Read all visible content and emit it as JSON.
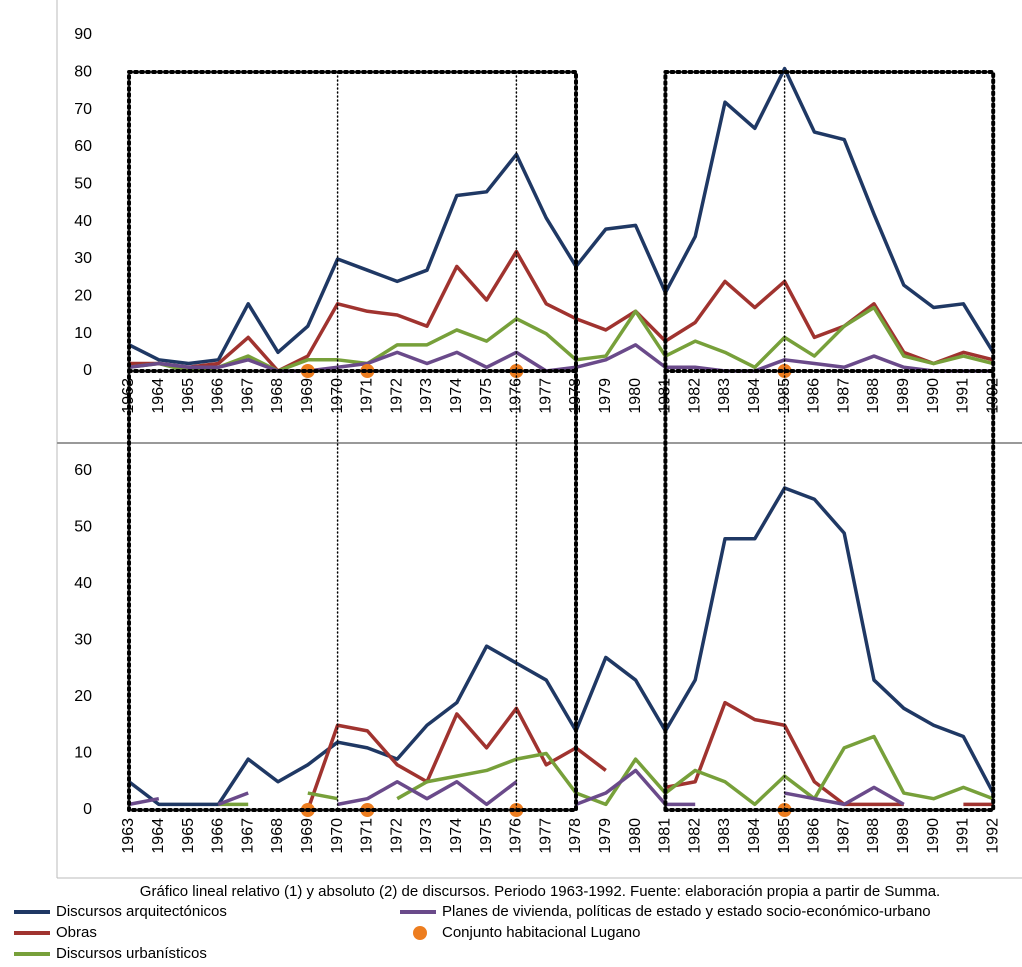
{
  "chart_data": [
    {
      "type": "line",
      "categories": [
        "1963",
        "1964",
        "1965",
        "1966",
        "1967",
        "1968",
        "1969",
        "1970",
        "1971",
        "1972",
        "1973",
        "1974",
        "1975",
        "1976",
        "1977",
        "1978",
        "1979",
        "1980",
        "1981",
        "1982",
        "1983",
        "1984",
        "1985",
        "1986",
        "1987",
        "1988",
        "1989",
        "1990",
        "1991",
        "1992"
      ],
      "ylim": [
        0,
        90
      ],
      "yticks": [
        0,
        10,
        20,
        30,
        40,
        50,
        60,
        70,
        80,
        90
      ],
      "grid": false,
      "series": [
        {
          "name": "Discursos arquitectónicos",
          "color": "#1f3864",
          "values": [
            7,
            3,
            2,
            3,
            18,
            5,
            12,
            30,
            27,
            24,
            27,
            47,
            48,
            58,
            41,
            28,
            38,
            39,
            21,
            36,
            72,
            65,
            81,
            64,
            62,
            42,
            23,
            17,
            18,
            5
          ]
        },
        {
          "name": "Obras",
          "color": "#a0332f",
          "values": [
            2,
            2,
            1,
            2,
            9,
            0,
            4,
            18,
            16,
            15,
            12,
            28,
            19,
            32,
            18,
            14,
            11,
            16,
            8,
            13,
            24,
            17,
            24,
            9,
            12,
            18,
            5,
            2,
            5,
            3
          ]
        },
        {
          "name": "Discursos urbanísticos",
          "color": "#77a03a",
          "values": [
            1,
            2,
            0,
            1,
            4,
            0,
            3,
            3,
            2,
            7,
            7,
            11,
            8,
            14,
            10,
            3,
            4,
            16,
            4,
            8,
            5,
            1,
            9,
            4,
            12,
            17,
            4,
            2,
            4,
            2
          ]
        },
        {
          "name": "Planes de vivienda, políticas de estado y estado socio-económico-urbano",
          "color": "#6a4a8a",
          "values": [
            1,
            2,
            1,
            1,
            3,
            0,
            0,
            1,
            2,
            5,
            2,
            5,
            1,
            5,
            0,
            1,
            3,
            7,
            1,
            1,
            0,
            0,
            3,
            2,
            1,
            4,
            1,
            0,
            0,
            0
          ]
        },
        {
          "name": "Conjunto habitacional Lugano",
          "color": "#ed7d1f",
          "mode": "markers",
          "values": [
            null,
            null,
            null,
            null,
            null,
            null,
            0,
            null,
            0,
            null,
            null,
            null,
            null,
            0,
            null,
            null,
            null,
            null,
            null,
            null,
            null,
            null,
            0,
            null,
            null,
            null,
            null,
            null,
            null,
            null
          ]
        }
      ]
    },
    {
      "type": "line",
      "categories": [
        "1963",
        "1964",
        "1965",
        "1966",
        "1967",
        "1968",
        "1969",
        "1970",
        "1971",
        "1972",
        "1973",
        "1974",
        "1975",
        "1976",
        "1977",
        "1978",
        "1979",
        "1980",
        "1981",
        "1982",
        "1983",
        "1984",
        "1985",
        "1986",
        "1987",
        "1988",
        "1989",
        "1990",
        "1991",
        "1992"
      ],
      "ylim": [
        0,
        60
      ],
      "yticks": [
        0,
        10,
        20,
        30,
        40,
        50,
        60
      ],
      "grid": false,
      "series": [
        {
          "name": "Discursos arquitectónicos",
          "color": "#1f3864",
          "values": [
            5,
            1,
            1,
            1,
            9,
            5,
            8,
            12,
            11,
            9,
            15,
            19,
            29,
            26,
            23,
            14,
            27,
            23,
            14,
            23,
            48,
            48,
            57,
            55,
            49,
            23,
            18,
            15,
            13,
            3
          ]
        },
        {
          "name": "Obras",
          "color": "#a0332f",
          "values": [
            null,
            null,
            null,
            null,
            null,
            null,
            0,
            15,
            14,
            8,
            5,
            17,
            11,
            18,
            8,
            11,
            7,
            null,
            4,
            5,
            19,
            16,
            15,
            5,
            1,
            1,
            1,
            null,
            1,
            1
          ]
        },
        {
          "name": "Discursos urbanísticos",
          "color": "#77a03a",
          "values": [
            null,
            null,
            null,
            1,
            1,
            null,
            3,
            2,
            null,
            2,
            5,
            6,
            7,
            9,
            10,
            3,
            1,
            9,
            3,
            7,
            5,
            1,
            6,
            2,
            11,
            13,
            3,
            2,
            4,
            2
          ]
        },
        {
          "name": "Planes de vivienda, políticas de estado y estado socio-económico-urbano",
          "color": "#6a4a8a",
          "values": [
            1,
            2,
            null,
            1,
            3,
            null,
            null,
            1,
            2,
            5,
            2,
            5,
            1,
            5,
            null,
            1,
            3,
            7,
            1,
            1,
            null,
            null,
            3,
            2,
            1,
            4,
            1,
            null,
            null,
            null
          ]
        },
        {
          "name": "Conjunto habitacional Lugano",
          "color": "#ed7d1f",
          "mode": "markers",
          "values": [
            null,
            null,
            null,
            null,
            null,
            null,
            0,
            null,
            0,
            null,
            null,
            null,
            null,
            0,
            null,
            null,
            null,
            null,
            null,
            null,
            null,
            null,
            0,
            null,
            null,
            null,
            null,
            null,
            null,
            null
          ]
        }
      ]
    }
  ],
  "caption": "Gráfico lineal relativo (1) y absoluto (2) de discursos. Periodo 1963-1992. Fuente: elaboración propia a partir de Summa."
}
